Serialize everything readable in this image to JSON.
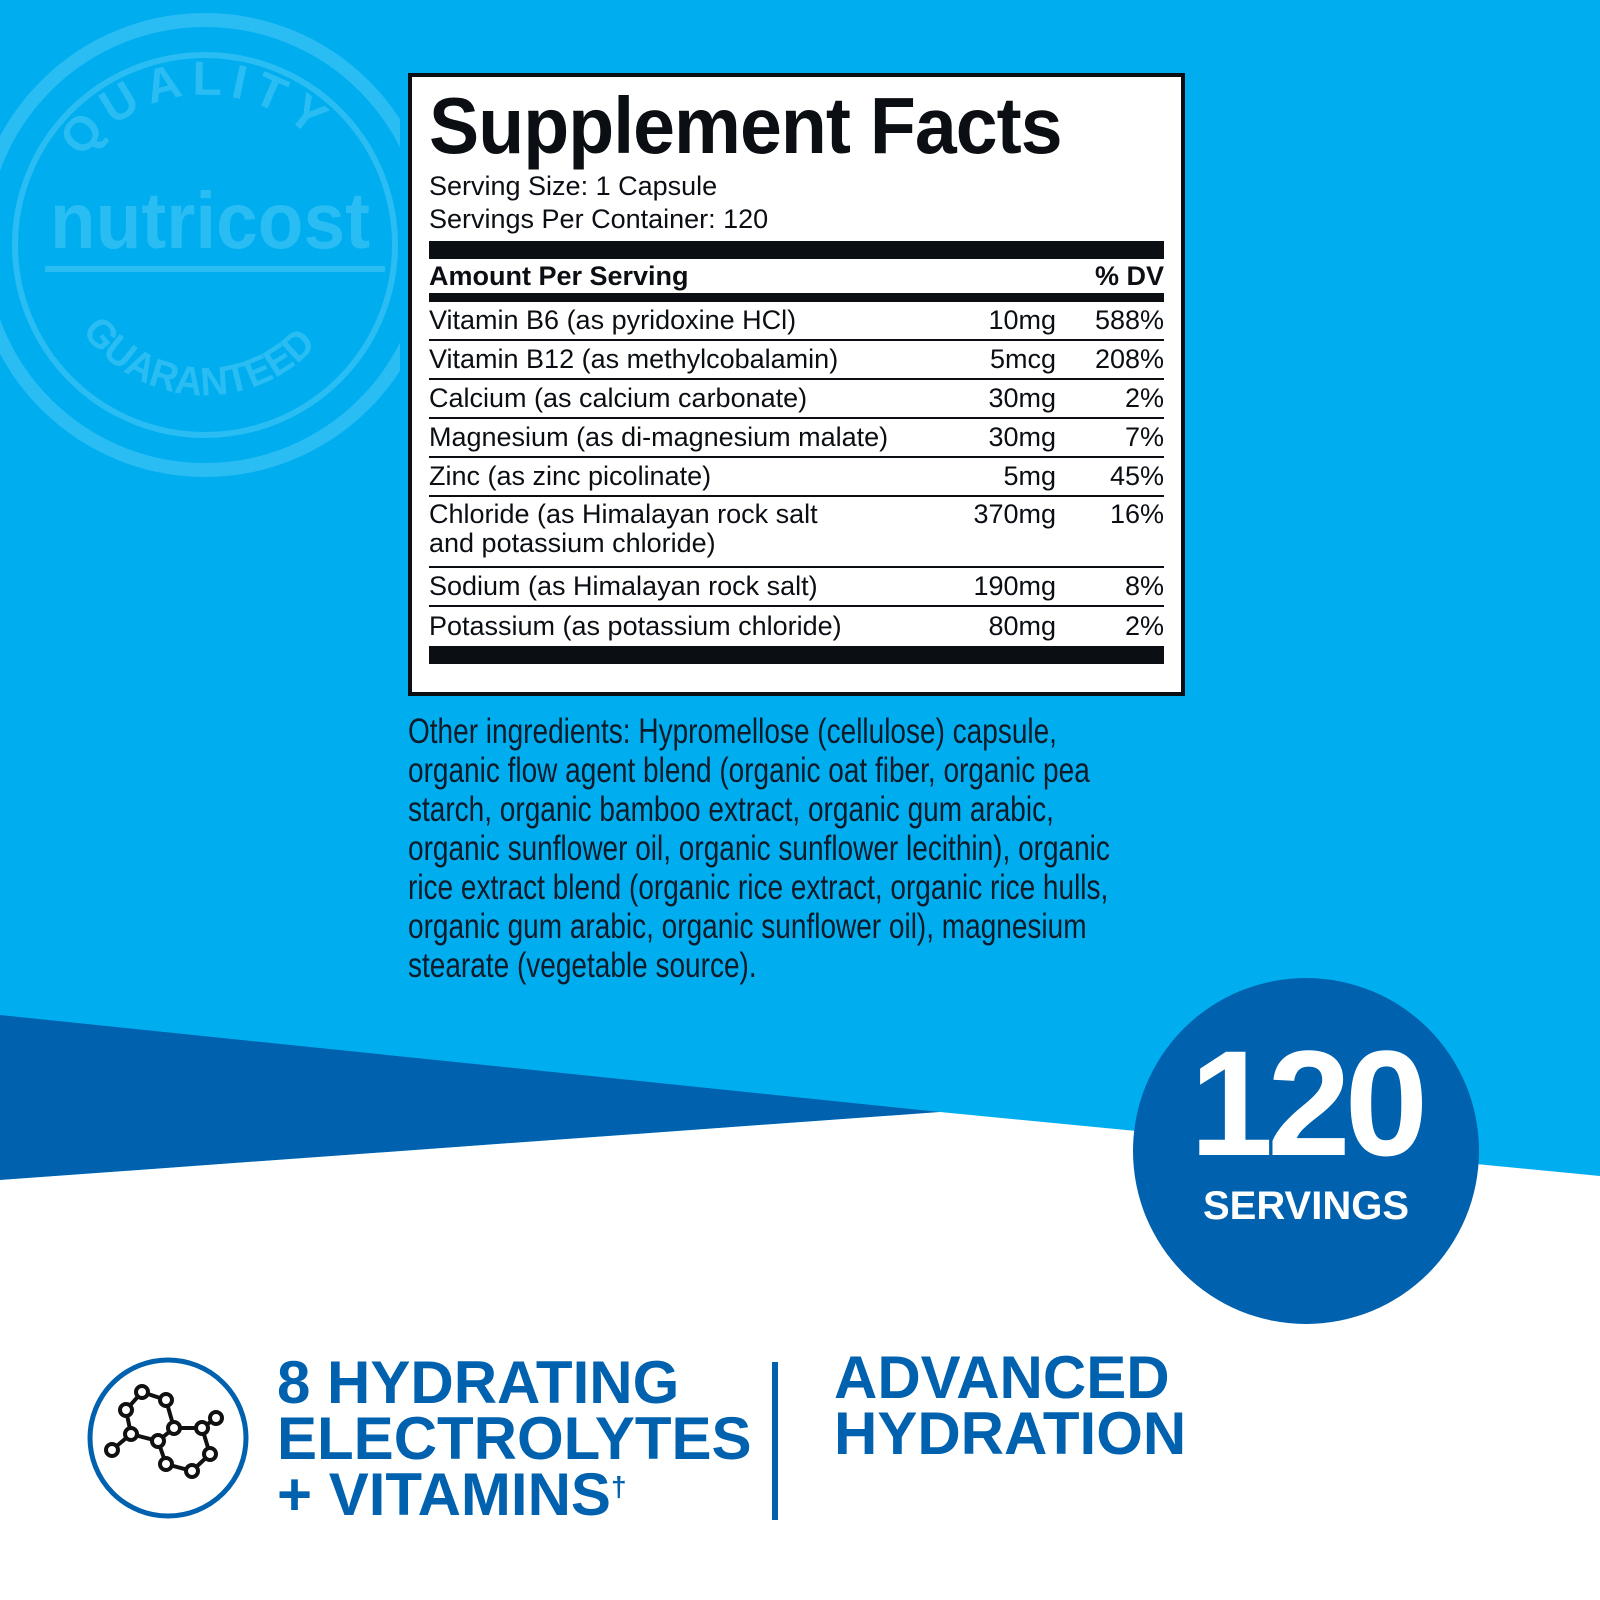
{
  "colors": {
    "light_blue": "#00aeef",
    "dark_blue": "#0061ae",
    "watermark": "#29bdf3",
    "text": "#0b0f14"
  },
  "watermark": {
    "top": "QUALITY",
    "brand": "nutricost",
    "bottom": "GUARANTEED"
  },
  "facts": {
    "title": "Supplement Facts",
    "serving_size": "Serving Size: 1 Capsule",
    "servings_per_container": "Servings Per Container: 120",
    "header_amount": "Amount Per Serving",
    "header_dv": "% DV",
    "rows": [
      {
        "name": "Vitamin B6 (as pyridoxine HCl)",
        "amount": "10mg",
        "dv": "588%"
      },
      {
        "name": "Vitamin B12 (as methylcobalamin)",
        "amount": "5mcg",
        "dv": "208%"
      },
      {
        "name": "Calcium (as calcium carbonate)",
        "amount": "30mg",
        "dv": "2%"
      },
      {
        "name": "Magnesium (as di-magnesium malate)",
        "amount": "30mg",
        "dv": "7%"
      },
      {
        "name": "Zinc (as zinc picolinate)",
        "amount": "5mg",
        "dv": "45%"
      },
      {
        "name": "Chloride (as Himalayan rock salt",
        "name2": "and potassium chloride)",
        "amount": "370mg",
        "dv": "16%"
      },
      {
        "name": "Sodium (as Himalayan rock salt)",
        "amount": "190mg",
        "dv": "8%"
      },
      {
        "name": "Potassium (as potassium chloride)",
        "amount": "80mg",
        "dv": "2%"
      }
    ]
  },
  "other_ingredients": [
    "Other ingredients: Hypromellose (cellulose) capsule,",
    "organic flow agent blend (organic oat fiber, organic pea",
    "starch, organic bamboo extract, organic gum arabic,",
    "organic sunflower oil, organic sunflower lecithin), organic",
    "rice extract blend (organic rice extract, organic rice hulls,",
    "organic gum arabic, organic sunflower oil), magnesium",
    "stearate (vegetable source)."
  ],
  "badge": {
    "number": "120",
    "label": "SERVINGS"
  },
  "feature": {
    "icon": "molecule-icon",
    "line1": "8 HYDRATING",
    "line2": "ELECTROLYTES",
    "line3": "+ VITAMINS",
    "mark": "†"
  },
  "tagline": {
    "line1": "ADVANCED",
    "line2": "HYDRATION"
  }
}
